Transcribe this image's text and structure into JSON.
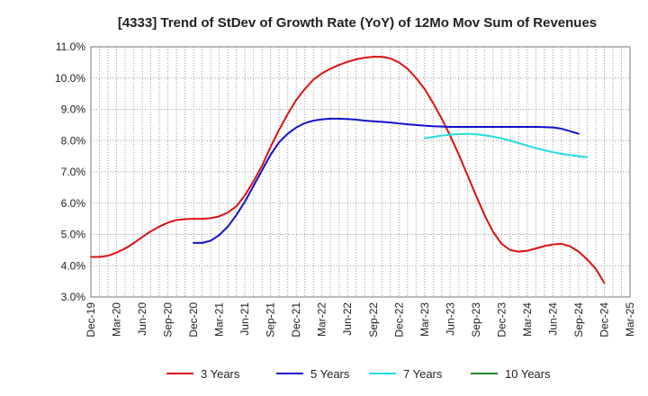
{
  "chart_data": {
    "type": "line",
    "title": "[4333]  Trend of StDev of Growth Rate (YoY) of 12Mo Mov Sum of Revenues",
    "xlabel": "",
    "ylabel": "",
    "ylim": [
      3.0,
      11.0
    ],
    "y_ticks": [
      3.0,
      4.0,
      5.0,
      6.0,
      7.0,
      8.0,
      9.0,
      10.0,
      11.0
    ],
    "y_tick_labels": [
      "3.0%",
      "4.0%",
      "5.0%",
      "6.0%",
      "7.0%",
      "8.0%",
      "9.0%",
      "10.0%",
      "11.0%"
    ],
    "x_range_months": [
      0,
      63
    ],
    "x_ticks": [
      {
        "label": "Dec-19",
        "m": 0
      },
      {
        "label": "Mar-20",
        "m": 3
      },
      {
        "label": "Jun-20",
        "m": 6
      },
      {
        "label": "Sep-20",
        "m": 9
      },
      {
        "label": "Dec-20",
        "m": 12
      },
      {
        "label": "Mar-21",
        "m": 15
      },
      {
        "label": "Jun-21",
        "m": 18
      },
      {
        "label": "Sep-21",
        "m": 21
      },
      {
        "label": "Dec-21",
        "m": 24
      },
      {
        "label": "Mar-22",
        "m": 27
      },
      {
        "label": "Jun-22",
        "m": 30
      },
      {
        "label": "Sep-22",
        "m": 33
      },
      {
        "label": "Dec-22",
        "m": 36
      },
      {
        "label": "Mar-23",
        "m": 39
      },
      {
        "label": "Jun-23",
        "m": 42
      },
      {
        "label": "Sep-23",
        "m": 45
      },
      {
        "label": "Dec-23",
        "m": 48
      },
      {
        "label": "Mar-24",
        "m": 51
      },
      {
        "label": "Jun-24",
        "m": 54
      },
      {
        "label": "Sep-24",
        "m": 57
      },
      {
        "label": "Dec-24",
        "m": 60
      },
      {
        "label": "Mar-25",
        "m": 63
      }
    ],
    "grid": true,
    "legend_position": "bottom",
    "series": [
      {
        "name": "3 Years",
        "color": "#dd1111",
        "points": [
          [
            0,
            4.28
          ],
          [
            1,
            4.28
          ],
          [
            2,
            4.32
          ],
          [
            3,
            4.42
          ],
          [
            4,
            4.55
          ],
          [
            5,
            4.72
          ],
          [
            6,
            4.92
          ],
          [
            7,
            5.1
          ],
          [
            8,
            5.25
          ],
          [
            9,
            5.38
          ],
          [
            10,
            5.46
          ],
          [
            11,
            5.49
          ],
          [
            12,
            5.5
          ],
          [
            13,
            5.5
          ],
          [
            14,
            5.52
          ],
          [
            15,
            5.58
          ],
          [
            16,
            5.7
          ],
          [
            17,
            5.9
          ],
          [
            18,
            6.25
          ],
          [
            19,
            6.7
          ],
          [
            20,
            7.2
          ],
          [
            21,
            7.8
          ],
          [
            22,
            8.35
          ],
          [
            23,
            8.85
          ],
          [
            24,
            9.3
          ],
          [
            25,
            9.65
          ],
          [
            26,
            9.95
          ],
          [
            27,
            10.15
          ],
          [
            28,
            10.3
          ],
          [
            29,
            10.42
          ],
          [
            30,
            10.52
          ],
          [
            31,
            10.6
          ],
          [
            32,
            10.65
          ],
          [
            33,
            10.68
          ],
          [
            34,
            10.68
          ],
          [
            35,
            10.63
          ],
          [
            36,
            10.5
          ],
          [
            37,
            10.3
          ],
          [
            38,
            10.0
          ],
          [
            39,
            9.65
          ],
          [
            40,
            9.2
          ],
          [
            41,
            8.7
          ],
          [
            42,
            8.15
          ],
          [
            43,
            7.55
          ],
          [
            44,
            6.9
          ],
          [
            45,
            6.25
          ],
          [
            46,
            5.62
          ],
          [
            47,
            5.08
          ],
          [
            48,
            4.7
          ],
          [
            49,
            4.5
          ],
          [
            50,
            4.45
          ],
          [
            51,
            4.48
          ],
          [
            52,
            4.55
          ],
          [
            53,
            4.63
          ],
          [
            54,
            4.68
          ],
          [
            55,
            4.7
          ],
          [
            56,
            4.62
          ],
          [
            57,
            4.45
          ],
          [
            58,
            4.2
          ],
          [
            59,
            3.9
          ],
          [
            60,
            3.45
          ]
        ]
      },
      {
        "name": "5 Years",
        "color": "#1111cc",
        "points": [
          [
            12,
            4.73
          ],
          [
            13,
            4.73
          ],
          [
            14,
            4.8
          ],
          [
            15,
            4.98
          ],
          [
            16,
            5.25
          ],
          [
            17,
            5.62
          ],
          [
            18,
            6.05
          ],
          [
            19,
            6.55
          ],
          [
            20,
            7.05
          ],
          [
            21,
            7.55
          ],
          [
            22,
            7.95
          ],
          [
            23,
            8.22
          ],
          [
            24,
            8.42
          ],
          [
            25,
            8.56
          ],
          [
            26,
            8.64
          ],
          [
            27,
            8.68
          ],
          [
            28,
            8.7
          ],
          [
            29,
            8.7
          ],
          [
            30,
            8.69
          ],
          [
            31,
            8.67
          ],
          [
            32,
            8.64
          ],
          [
            33,
            8.62
          ],
          [
            34,
            8.6
          ],
          [
            35,
            8.58
          ],
          [
            36,
            8.55
          ],
          [
            37,
            8.52
          ],
          [
            38,
            8.5
          ],
          [
            39,
            8.48
          ],
          [
            40,
            8.46
          ],
          [
            41,
            8.45
          ],
          [
            42,
            8.44
          ],
          [
            43,
            8.44
          ],
          [
            44,
            8.44
          ],
          [
            45,
            8.44
          ],
          [
            46,
            8.44
          ],
          [
            47,
            8.44
          ],
          [
            48,
            8.44
          ],
          [
            49,
            8.44
          ],
          [
            50,
            8.44
          ],
          [
            51,
            8.44
          ],
          [
            52,
            8.44
          ],
          [
            53,
            8.43
          ],
          [
            54,
            8.42
          ],
          [
            55,
            8.38
          ],
          [
            56,
            8.3
          ],
          [
            57,
            8.22
          ]
        ]
      },
      {
        "name": "7 Years",
        "color": "#22dddd",
        "points": [
          [
            39,
            8.08
          ],
          [
            40,
            8.12
          ],
          [
            41,
            8.16
          ],
          [
            42,
            8.19
          ],
          [
            43,
            8.21
          ],
          [
            44,
            8.22
          ],
          [
            45,
            8.2
          ],
          [
            46,
            8.17
          ],
          [
            47,
            8.13
          ],
          [
            48,
            8.07
          ],
          [
            49,
            8.0
          ],
          [
            50,
            7.92
          ],
          [
            51,
            7.84
          ],
          [
            52,
            7.76
          ],
          [
            53,
            7.69
          ],
          [
            54,
            7.63
          ],
          [
            55,
            7.58
          ],
          [
            56,
            7.54
          ],
          [
            57,
            7.5
          ],
          [
            58,
            7.47
          ]
        ]
      },
      {
        "name": "10 Years",
        "color": "#228822",
        "points": []
      }
    ]
  }
}
